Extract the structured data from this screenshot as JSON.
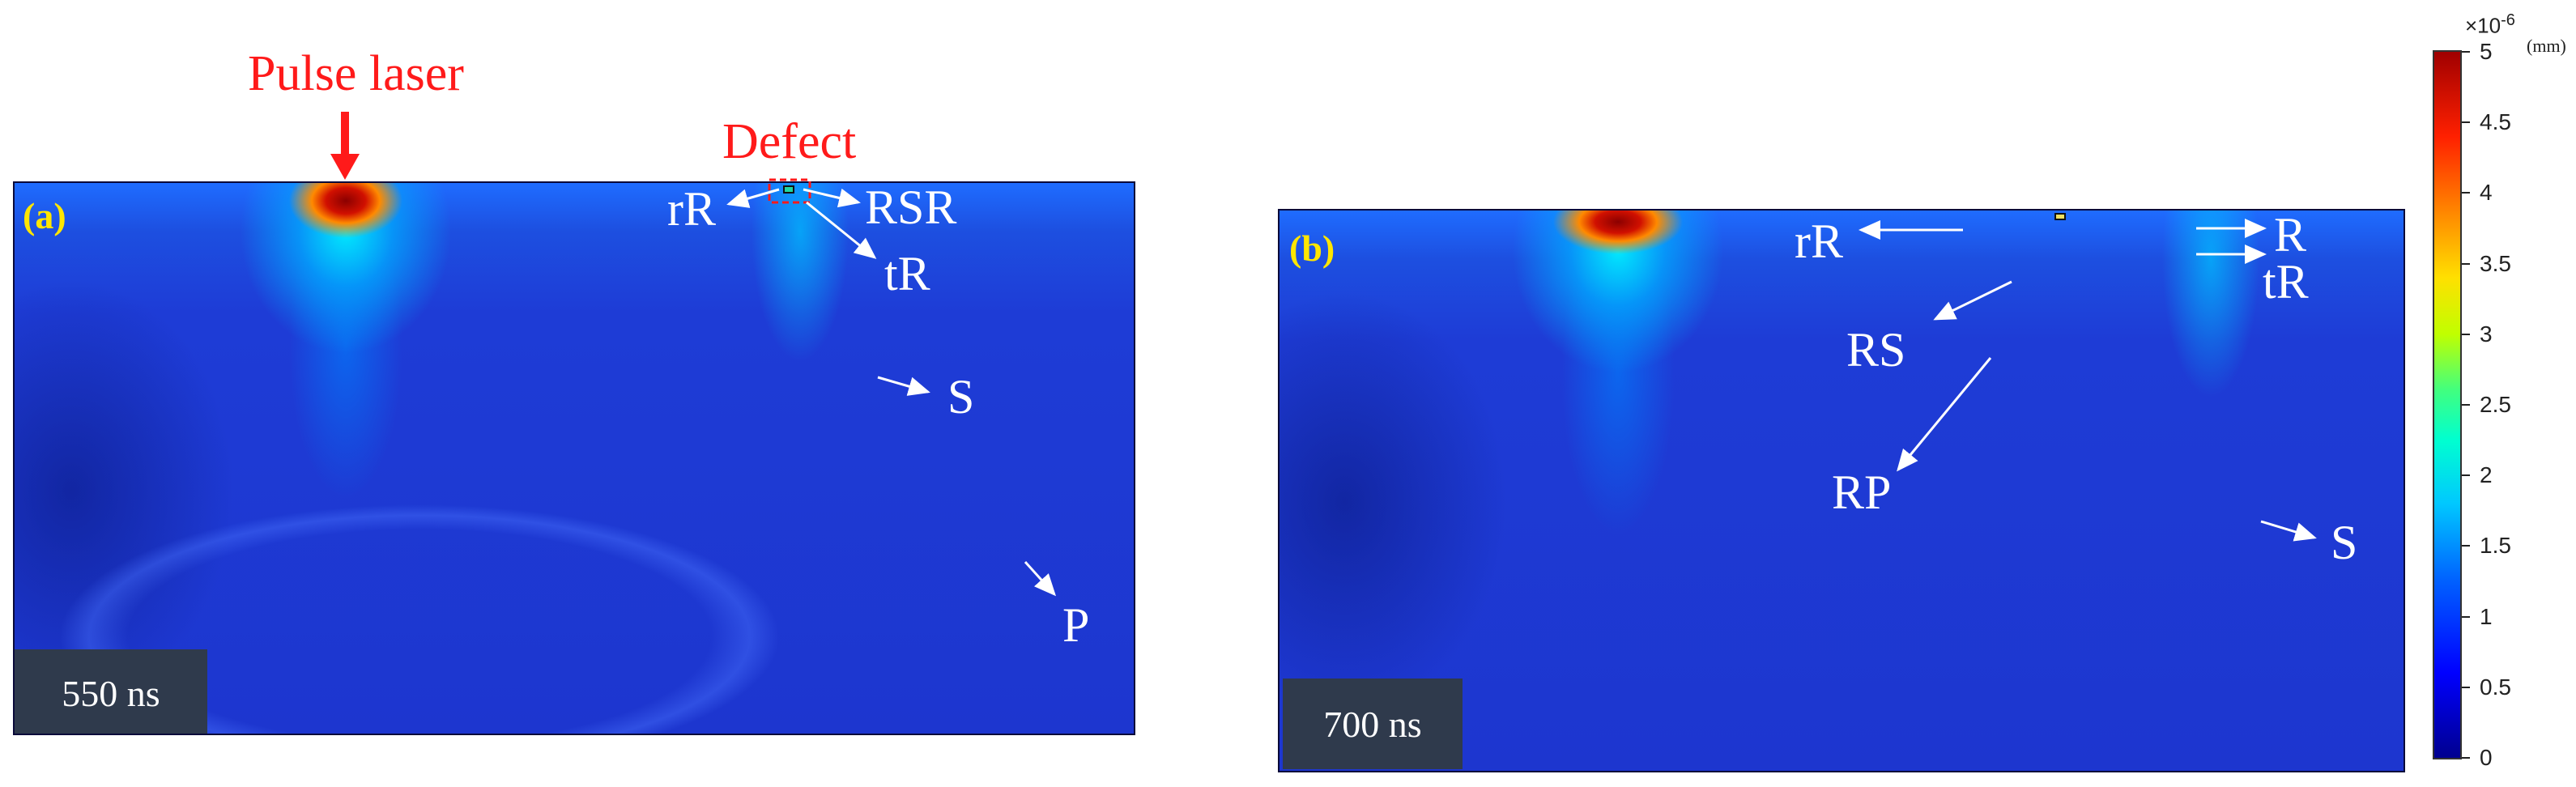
{
  "figure": {
    "top_annotations": {
      "pulse_laser": "Pulse laser",
      "defect": "Defect"
    },
    "panel_a": {
      "label": "(a)",
      "time": "550 ns",
      "wave_labels": {
        "rR": "rR",
        "RSR": "RSR",
        "tR": "tR",
        "S": "S",
        "P": "P"
      }
    },
    "panel_b": {
      "label": "(b)",
      "time": "700 ns",
      "wave_labels": {
        "rR": "rR",
        "R": "R",
        "tR": "tR",
        "RS": "RS",
        "RP": "RP",
        "S": "S"
      }
    },
    "colorbar": {
      "exponent": "×10",
      "exponent_power": "-6",
      "unit": "(mm)",
      "ticks": [
        "0",
        "0.5",
        "1",
        "1.5",
        "2",
        "2.5",
        "3",
        "3.5",
        "4",
        "4.5",
        "5"
      ]
    },
    "colors": {
      "annotation_red": "#ff1a1a",
      "panel_label_yellow": "#ffe600",
      "field_base": "#1d36cf"
    }
  }
}
